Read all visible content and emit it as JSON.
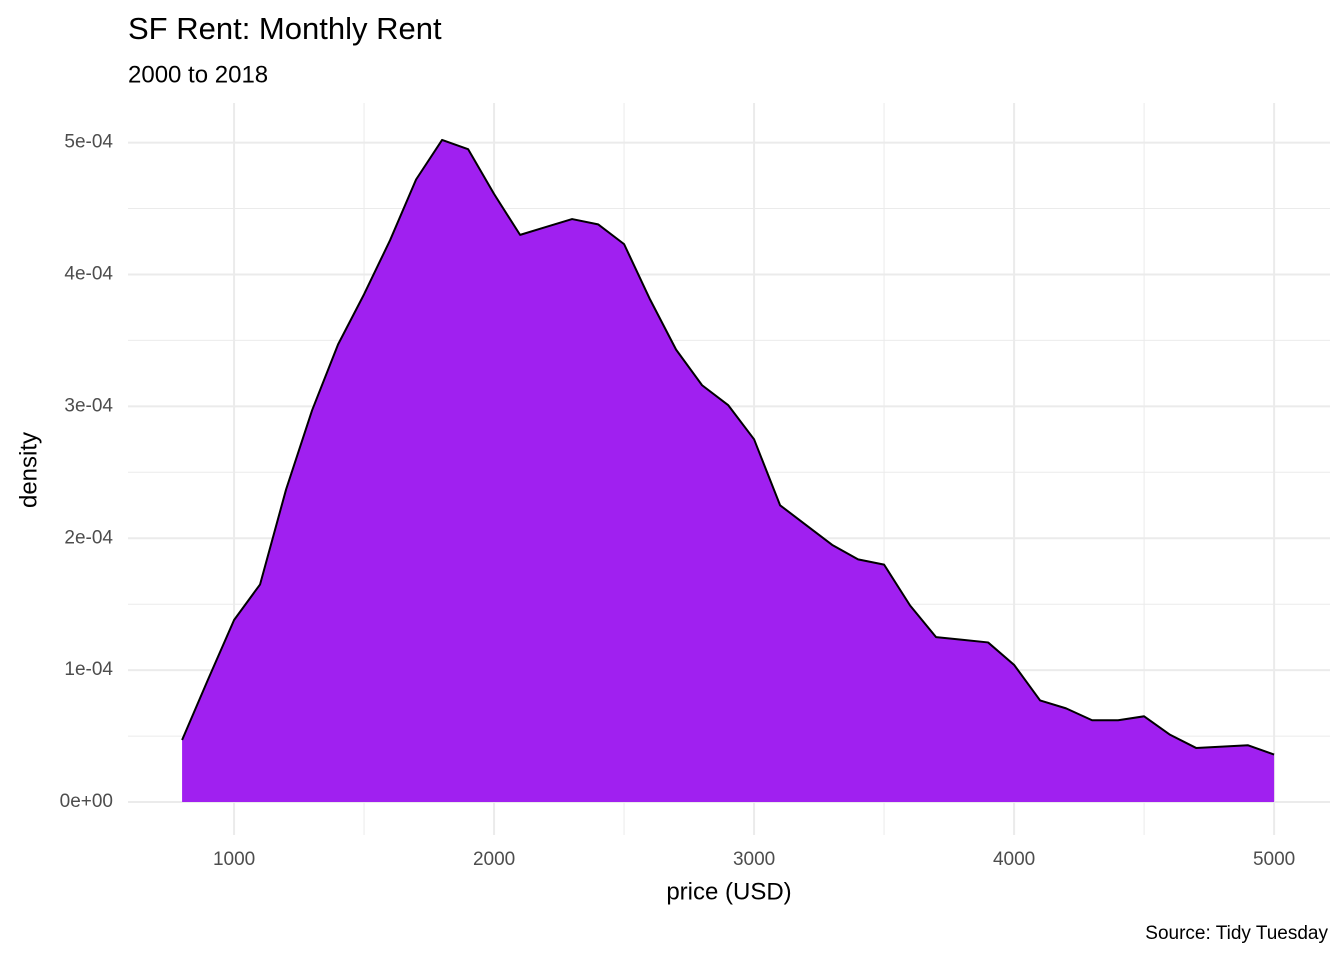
{
  "chart_data": {
    "type": "area",
    "title": "SF Rent: Monthly Rent",
    "subtitle": "2000 to 2018",
    "x_label": "price (USD)",
    "y_label": "density",
    "caption": "Source: Tidy Tuesday",
    "color": "#a020f0",
    "line_color": "#000000",
    "grid": true,
    "x": [
      800,
      900,
      1000,
      1100,
      1200,
      1300,
      1400,
      1500,
      1600,
      1700,
      1800,
      1900,
      2000,
      2100,
      2200,
      2300,
      2400,
      2500,
      2600,
      2700,
      2800,
      2900,
      3000,
      3100,
      3200,
      3300,
      3400,
      3500,
      3600,
      3700,
      3800,
      3900,
      4000,
      4100,
      4200,
      4300,
      4400,
      4500,
      4600,
      4700,
      4800,
      4900,
      5000
    ],
    "values": [
      4.7e-05,
      9.3e-05,
      0.000138,
      0.000165,
      0.000237,
      0.000297,
      0.000347,
      0.000385,
      0.000426,
      0.000472,
      0.000502,
      0.000495,
      0.000461,
      0.00043,
      0.000436,
      0.000442,
      0.000438,
      0.000423,
      0.000381,
      0.000343,
      0.000316,
      0.000301,
      0.000275,
      0.000225,
      0.00021,
      0.000195,
      0.000184,
      0.00018,
      0.000149,
      0.000125,
      0.000123,
      0.000121,
      0.000104,
      7.7e-05,
      7.1e-05,
      6.2e-05,
      6.2e-05,
      6.5e-05,
      5.1e-05,
      4.1e-05,
      4.2e-05,
      4.3e-05,
      3.6e-05
    ],
    "xlim": [
      592,
      5215
    ],
    "ylim": [
      -2.5e-05,
      0.00053
    ],
    "xticks": [
      1000,
      2000,
      3000,
      4000,
      5000
    ],
    "x_minor_ticks": [
      1500,
      2500,
      3500,
      4500
    ],
    "yticks": [
      {
        "value": 0,
        "label": "0e+00"
      },
      {
        "value": 0.0001,
        "label": "1e-04"
      },
      {
        "value": 0.0002,
        "label": "2e-04"
      },
      {
        "value": 0.0003,
        "label": "3e-04"
      },
      {
        "value": 0.0004,
        "label": "4e-04"
      },
      {
        "value": 0.0005,
        "label": "5e-04"
      }
    ],
    "y_minor_ticks": [
      5e-05,
      0.00015,
      0.00025,
      0.00035,
      0.00045
    ]
  }
}
